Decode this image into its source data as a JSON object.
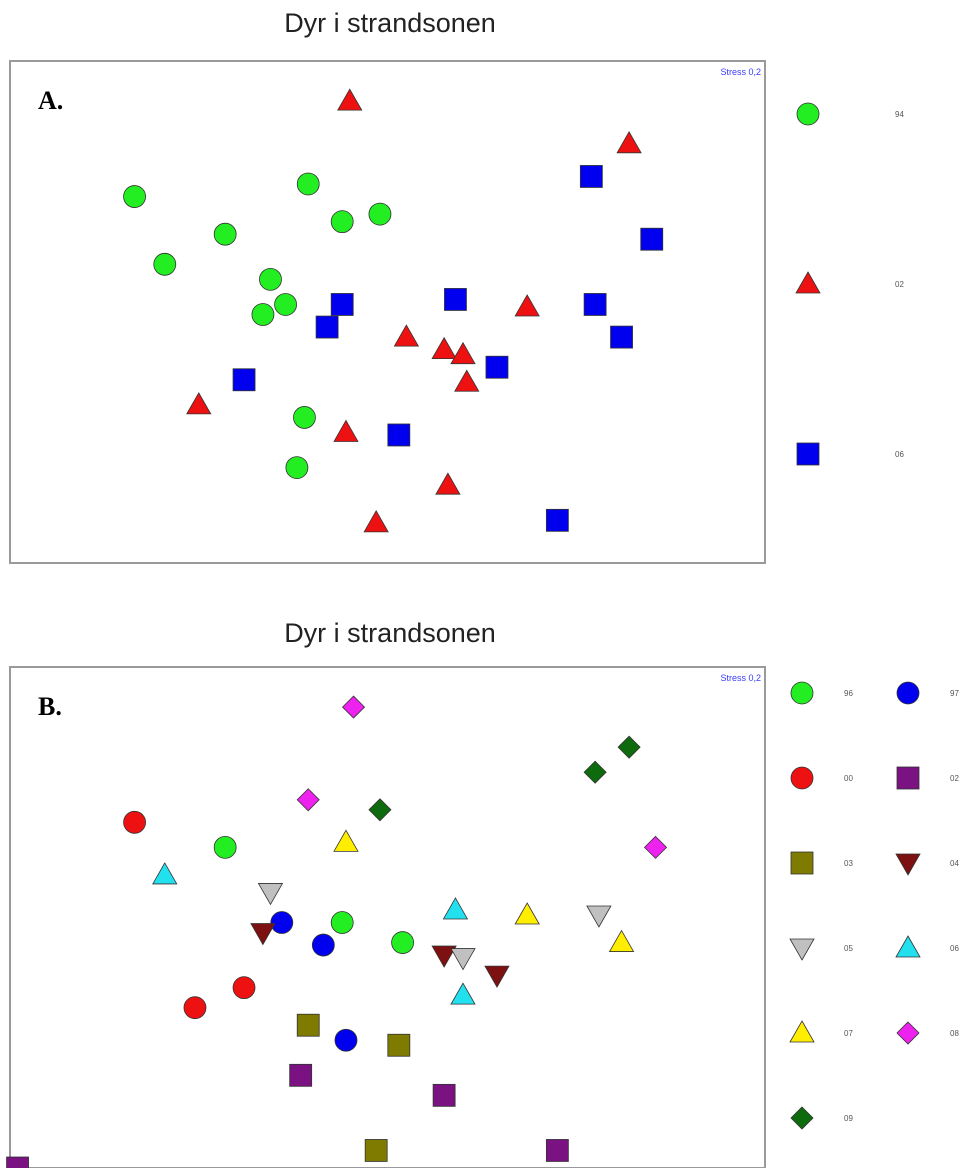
{
  "chart_data": [
    {
      "type": "scatter",
      "panel_label": "A.",
      "title": "Dyr i strandsonen",
      "stress_label": "Stress 0,2",
      "xlim": [
        0,
        100
      ],
      "ylim": [
        0,
        100
      ],
      "series": [
        {
          "name": "94",
          "marker": "circle",
          "color": "#22ee22",
          "points": [
            [
              16.5,
              73
            ],
            [
              28.5,
              65.5
            ],
            [
              20.5,
              59.5
            ],
            [
              39.5,
              75.5
            ],
            [
              44,
              68
            ],
            [
              49,
              69.5
            ],
            [
              34.5,
              56.5
            ],
            [
              36.5,
              51.5
            ],
            [
              33.5,
              49.5
            ],
            [
              39,
              29
            ],
            [
              38,
              19
            ]
          ]
        },
        {
          "name": "02",
          "marker": "triangle-up",
          "color": "#ee1111",
          "points": [
            [
              45,
              92
            ],
            [
              82,
              83.5
            ],
            [
              68.5,
              51
            ],
            [
              52.5,
              45
            ],
            [
              57.5,
              42.5
            ],
            [
              60,
              41.5
            ],
            [
              60.5,
              36
            ],
            [
              25,
              31.5
            ],
            [
              44.5,
              26
            ],
            [
              58,
              15.5
            ],
            [
              48.5,
              8
            ]
          ]
        },
        {
          "name": "06",
          "marker": "square",
          "color": "#0000ee",
          "points": [
            [
              77,
              77
            ],
            [
              85,
              64.5
            ],
            [
              44,
              51.5
            ],
            [
              59,
              52.5
            ],
            [
              77.5,
              51.5
            ],
            [
              42,
              47
            ],
            [
              81,
              45
            ],
            [
              64.5,
              39
            ],
            [
              31,
              36.5
            ],
            [
              51.5,
              25.5
            ],
            [
              72.5,
              8.5
            ]
          ]
        }
      ]
    },
    {
      "type": "scatter",
      "panel_label": "B.",
      "title": "Dyr i strandsonen",
      "stress_label": "Stress 0,2",
      "xlim": [
        0,
        100
      ],
      "ylim": [
        0,
        100
      ],
      "series": [
        {
          "name": "96",
          "marker": "circle",
          "color": "#22ee22",
          "points": [
            [
              28.5,
              64
            ],
            [
              44,
              49
            ],
            [
              52,
              45
            ]
          ]
        },
        {
          "name": "97",
          "marker": "circle",
          "color": "#0000ee",
          "points": [
            [
              36,
              49
            ],
            [
              41.5,
              44.5
            ],
            [
              44.5,
              25.5
            ]
          ]
        },
        {
          "name": "00",
          "marker": "circle",
          "color": "#ee1111",
          "points": [
            [
              16.5,
              69
            ],
            [
              31,
              36
            ],
            [
              24.5,
              32
            ]
          ]
        },
        {
          "name": "02",
          "marker": "square",
          "color": "#7a1282",
          "points": [
            [
              38.5,
              18.5
            ],
            [
              57.5,
              14.5
            ],
            [
              72.5,
              3.5
            ],
            [
              1,
              0
            ]
          ]
        },
        {
          "name": "03",
          "marker": "square",
          "color": "#7f7a00",
          "points": [
            [
              39.5,
              28.5
            ],
            [
              51.5,
              24.5
            ],
            [
              48.5,
              3.5
            ]
          ]
        },
        {
          "name": "04",
          "marker": "triangle-down",
          "color": "#7d1010",
          "points": [
            [
              33.5,
              47
            ],
            [
              57.5,
              42.5
            ],
            [
              64.5,
              38.5
            ]
          ]
        },
        {
          "name": "05",
          "marker": "triangle-down",
          "color": "#c0c0c0",
          "points": [
            [
              34.5,
              55
            ],
            [
              78,
              50.5
            ],
            [
              60,
              42
            ]
          ]
        },
        {
          "name": "06",
          "marker": "triangle-up",
          "color": "#22e0ee",
          "points": [
            [
              20.5,
              58.5
            ],
            [
              59,
              51.5
            ],
            [
              60,
              34.5
            ]
          ]
        },
        {
          "name": "07",
          "marker": "triangle-up",
          "color": "#ffee00",
          "points": [
            [
              44.5,
              65
            ],
            [
              68.5,
              50.5
            ],
            [
              81,
              45
            ]
          ]
        },
        {
          "name": "08",
          "marker": "diamond",
          "color": "#ee22ee",
          "points": [
            [
              45.5,
              92
            ],
            [
              39.5,
              73.5
            ],
            [
              85.5,
              64
            ]
          ]
        },
        {
          "name": "09",
          "marker": "diamond",
          "color": "#0d6b0d",
          "points": [
            [
              82,
              84
            ],
            [
              77.5,
              79
            ],
            [
              49,
              71.5
            ]
          ]
        }
      ]
    }
  ]
}
